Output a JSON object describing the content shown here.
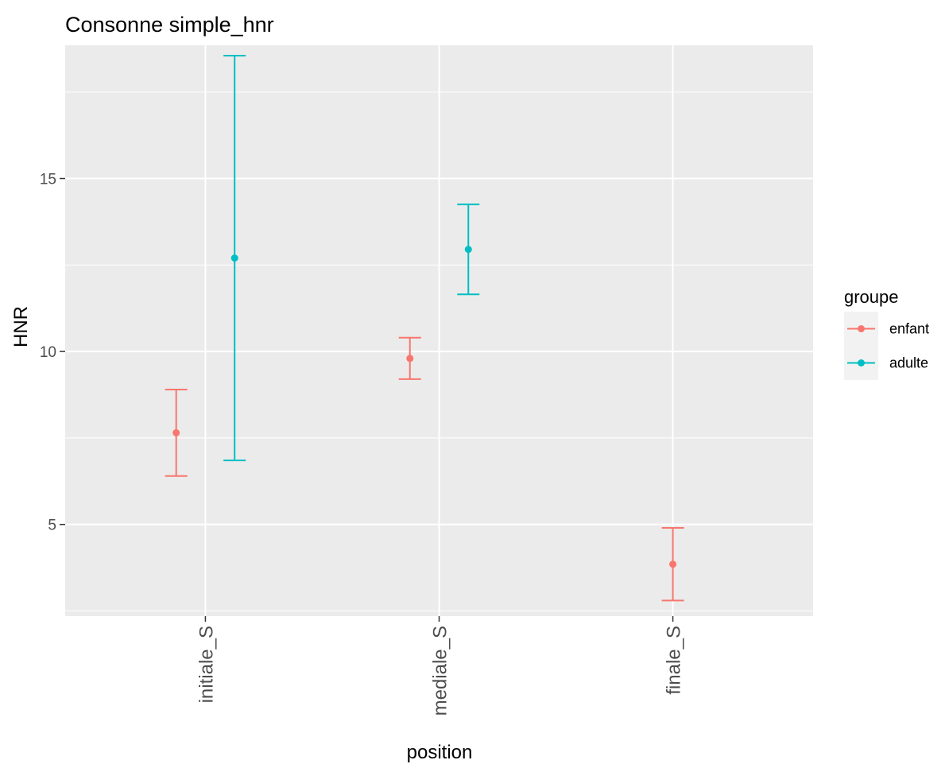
{
  "chart_data": {
    "type": "errorbar",
    "title": "Consonne simple_hnr",
    "xlabel": "position",
    "ylabel": "HNR",
    "categories": [
      "initiale_S",
      "mediale_S",
      "finale_S"
    ],
    "ylim": [
      2.35,
      18.85
    ],
    "yticks": [
      5,
      10,
      15
    ],
    "grid": true,
    "legend": {
      "title": "groupe",
      "position": "right",
      "entries": [
        "enfant",
        "adulte"
      ]
    },
    "series": [
      {
        "name": "enfant",
        "color": "#F8766D",
        "points": [
          {
            "category": "initiale_S",
            "mean": 7.65,
            "lower": 6.4,
            "upper": 8.9
          },
          {
            "category": "mediale_S",
            "mean": 9.8,
            "lower": 9.2,
            "upper": 10.4
          },
          {
            "category": "finale_S",
            "mean": 3.85,
            "lower": 2.8,
            "upper": 4.9
          }
        ]
      },
      {
        "name": "adulte",
        "color": "#00BFC4",
        "points": [
          {
            "category": "initiale_S",
            "mean": 12.7,
            "lower": 6.85,
            "upper": 18.55
          },
          {
            "category": "mediale_S",
            "mean": 12.95,
            "lower": 11.65,
            "upper": 14.25
          }
        ]
      }
    ]
  }
}
